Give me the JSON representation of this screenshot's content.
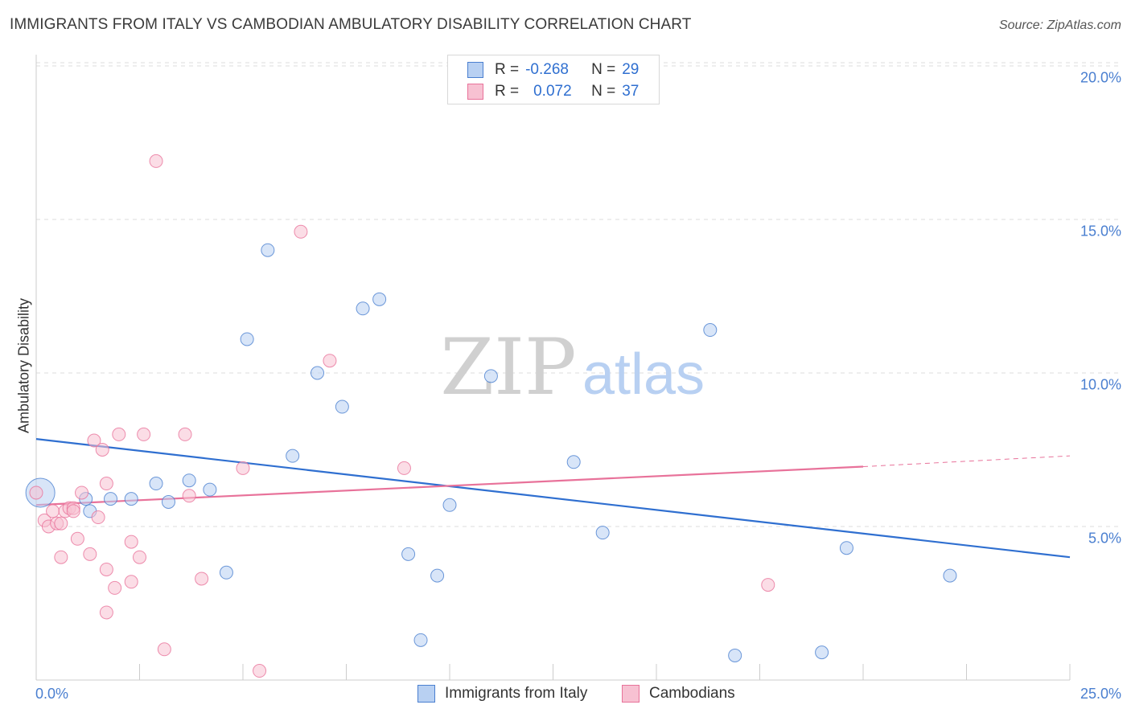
{
  "title": "IMMIGRANTS FROM ITALY VS CAMBODIAN AMBULATORY DISABILITY CORRELATION CHART",
  "source": "Source: ZipAtlas.com",
  "watermark": {
    "zip": "ZIP",
    "atlas": "atlas"
  },
  "colors": {
    "blue": "#4a7fd0",
    "blue_fill": "#b8d0f2",
    "blue_line": "#2f6fd0",
    "pink": "#e8729a",
    "pink_fill": "#f7c1d2",
    "grid": "#dddddd",
    "axis_text": "#4a7fd0"
  },
  "legend": {
    "r_label": "R =",
    "n_label": "N =",
    "rows": [
      {
        "r": "-0.268",
        "n": "29"
      },
      {
        "r": "0.072",
        "n": "37"
      }
    ]
  },
  "chart_data": {
    "type": "scatter",
    "title": "IMMIGRANTS FROM ITALY VS CAMBODIAN AMBULATORY DISABILITY CORRELATION CHART",
    "ylabel": "Ambulatory Disability",
    "xlabel": "",
    "x_tick_labels": [
      "0.0%",
      "25.0%"
    ],
    "y_tick_labels": [
      "5.0%",
      "10.0%",
      "15.0%",
      "20.0%"
    ],
    "xlim": [
      0,
      25
    ],
    "ylim": [
      0,
      20.8
    ],
    "y_ticks": [
      5,
      10,
      15,
      20
    ],
    "grid": true,
    "legend_position": "top-center",
    "series": [
      {
        "name": "Immigrants from Italy",
        "color": "#4a7fd0",
        "points": [
          [
            0.1,
            6.1
          ],
          [
            1.2,
            5.9
          ],
          [
            1.8,
            5.9
          ],
          [
            2.3,
            5.9
          ],
          [
            2.9,
            6.4
          ],
          [
            3.2,
            5.8
          ],
          [
            3.7,
            6.5
          ],
          [
            4.2,
            6.2
          ],
          [
            4.6,
            3.5
          ],
          [
            5.1,
            11.1
          ],
          [
            5.6,
            14.0
          ],
          [
            6.2,
            7.3
          ],
          [
            6.8,
            10.0
          ],
          [
            7.4,
            8.9
          ],
          [
            7.9,
            12.1
          ],
          [
            8.3,
            12.4
          ],
          [
            9.0,
            4.1
          ],
          [
            9.3,
            1.3
          ],
          [
            9.7,
            3.4
          ],
          [
            10.0,
            5.7
          ],
          [
            11.0,
            9.9
          ],
          [
            13.0,
            7.1
          ],
          [
            13.7,
            4.8
          ],
          [
            16.3,
            11.4
          ],
          [
            16.9,
            0.8
          ],
          [
            19.0,
            0.9
          ],
          [
            19.6,
            4.3
          ],
          [
            22.1,
            3.4
          ],
          [
            1.3,
            5.5
          ]
        ],
        "trend": {
          "x": [
            0,
            25
          ],
          "y": [
            7.85,
            4.0
          ]
        }
      },
      {
        "name": "Cambodians",
        "color": "#e8729a",
        "points": [
          [
            0.0,
            6.1
          ],
          [
            0.2,
            5.2
          ],
          [
            0.3,
            5.0
          ],
          [
            0.4,
            5.5
          ],
          [
            0.5,
            5.1
          ],
          [
            0.6,
            5.1
          ],
          [
            0.6,
            4.0
          ],
          [
            0.7,
            5.5
          ],
          [
            0.8,
            5.6
          ],
          [
            0.9,
            5.6
          ],
          [
            0.9,
            5.5
          ],
          [
            1.0,
            4.6
          ],
          [
            1.1,
            6.1
          ],
          [
            1.3,
            4.1
          ],
          [
            1.4,
            7.8
          ],
          [
            1.5,
            5.3
          ],
          [
            1.6,
            7.5
          ],
          [
            1.7,
            3.6
          ],
          [
            1.7,
            6.4
          ],
          [
            1.7,
            2.2
          ],
          [
            1.9,
            3.0
          ],
          [
            2.0,
            8.0
          ],
          [
            2.3,
            4.5
          ],
          [
            2.3,
            3.2
          ],
          [
            2.5,
            4.0
          ],
          [
            2.6,
            8.0
          ],
          [
            2.9,
            16.9
          ],
          [
            3.1,
            1.0
          ],
          [
            3.6,
            8.0
          ],
          [
            3.7,
            6.0
          ],
          [
            4.0,
            3.3
          ],
          [
            5.0,
            6.9
          ],
          [
            5.4,
            0.3
          ],
          [
            6.4,
            14.6
          ],
          [
            7.1,
            10.4
          ],
          [
            8.9,
            6.9
          ],
          [
            17.7,
            3.1
          ]
        ],
        "trend": {
          "x": [
            0,
            20
          ],
          "y": [
            5.7,
            6.95
          ]
        },
        "trend_dashed": {
          "x": [
            20,
            25
          ],
          "y": [
            6.95,
            7.3
          ]
        }
      }
    ]
  }
}
